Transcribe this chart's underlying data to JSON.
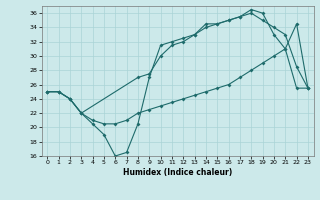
{
  "xlabel": "Humidex (Indice chaleur)",
  "bg_color": "#cce9ea",
  "grid_color": "#aad4d6",
  "line_color": "#1e6b6b",
  "xlim": [
    -0.5,
    23.5
  ],
  "ylim": [
    16,
    37
  ],
  "xticks": [
    0,
    1,
    2,
    3,
    4,
    5,
    6,
    7,
    8,
    9,
    10,
    11,
    12,
    13,
    14,
    15,
    16,
    17,
    18,
    19,
    20,
    21,
    22,
    23
  ],
  "yticks": [
    16,
    18,
    20,
    22,
    24,
    26,
    28,
    30,
    32,
    34,
    36
  ],
  "line1_x": [
    0,
    1,
    2,
    3,
    4,
    5,
    6,
    7,
    8,
    9,
    10,
    11,
    12,
    13,
    14,
    15,
    16,
    17,
    18,
    19,
    20,
    21,
    22,
    23
  ],
  "line1_y": [
    25,
    25,
    24,
    22,
    20.5,
    19,
    16,
    16.5,
    20.5,
    27,
    31.5,
    32,
    32.5,
    33,
    34.5,
    34.5,
    35,
    35.5,
    36,
    35,
    34,
    33,
    28.5,
    25.5
  ],
  "line2_x": [
    0,
    1,
    2,
    3,
    4,
    5,
    6,
    7,
    8,
    9,
    10,
    11,
    12,
    13,
    14,
    15,
    16,
    17,
    18,
    19,
    20,
    21,
    22,
    23
  ],
  "line2_y": [
    25,
    25,
    24,
    22,
    21,
    20.5,
    20.5,
    21,
    22,
    22.5,
    23,
    23.5,
    24,
    24.5,
    25,
    25.5,
    26,
    27,
    28,
    29,
    30,
    31,
    34.5,
    25.5
  ],
  "line3_x": [
    0,
    1,
    2,
    3,
    8,
    9,
    10,
    11,
    12,
    13,
    14,
    15,
    16,
    17,
    18,
    19,
    20,
    21,
    22,
    23
  ],
  "line3_y": [
    25,
    25,
    24,
    22,
    27,
    27.5,
    30,
    31.5,
    32,
    33,
    34,
    34.5,
    35,
    35.5,
    36.5,
    36,
    33,
    31,
    25.5,
    25.5
  ]
}
